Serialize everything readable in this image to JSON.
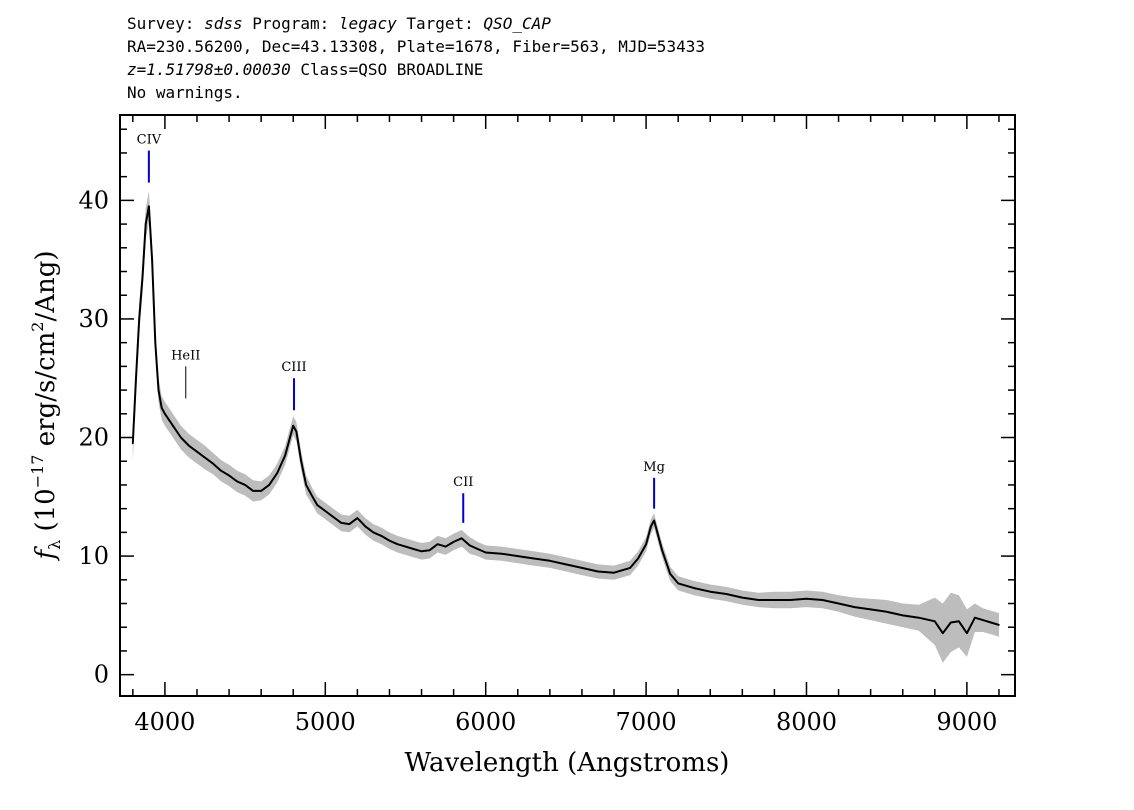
{
  "header": {
    "line1": {
      "survey_label": "Survey: ",
      "survey_value": "sdss",
      "program_label": " Program: ",
      "program_value": "legacy",
      "target_label": " Target: ",
      "target_value": "QSO_CAP"
    },
    "line2": "RA=230.56200, Dec=43.13308, Plate=1678, Fiber=563, MJD=53433",
    "line3": {
      "redshift": "z=1.51798±0.00030",
      "class_text": " Class=QSO BROADLINE"
    },
    "line4": "No warnings."
  },
  "chart_data": {
    "type": "line",
    "title": "",
    "xlabel": "Wavelength (Angstroms)",
    "ylabel_parts": {
      "symbol": "f",
      "symbol_sub": "λ",
      "open": " (10",
      "exponent": "−17",
      "units_a": " erg/s/cm",
      "units_exp": "2",
      "units_b": "/Ang)"
    },
    "xlim": [
      3720,
      9300
    ],
    "ylim": [
      -1.8,
      47.2
    ],
    "xticks": [
      4000,
      5000,
      6000,
      7000,
      8000,
      9000
    ],
    "yticks": [
      0,
      10,
      20,
      30,
      40
    ],
    "grid": false,
    "colors": {
      "flux": "#000000",
      "error": "#bdbdbd",
      "line_marker": "#0000cc",
      "weak_marker": "#000000"
    },
    "series": [
      {
        "name": "",
        "x": [
          3800,
          3820,
          3840,
          3860,
          3880,
          3900,
          3920,
          3940,
          3960,
          3980,
          4000,
          4050,
          4100,
          4150,
          4200,
          4250,
          4300,
          4350,
          4400,
          4450,
          4500,
          4550,
          4600,
          4650,
          4700,
          4750,
          4780,
          4800,
          4820,
          4850,
          4880,
          4920,
          4950,
          5000,
          5050,
          5100,
          5150,
          5200,
          5250,
          5300,
          5350,
          5400,
          5450,
          5500,
          5550,
          5600,
          5650,
          5700,
          5750,
          5800,
          5850,
          5900,
          5950,
          6000,
          6100,
          6200,
          6300,
          6400,
          6500,
          6600,
          6700,
          6800,
          6900,
          6950,
          7000,
          7030,
          7050,
          7070,
          7100,
          7150,
          7200,
          7300,
          7400,
          7500,
          7600,
          7700,
          7800,
          7900,
          8000,
          8100,
          8200,
          8300,
          8400,
          8500,
          8600,
          8700,
          8800,
          8850,
          8900,
          8950,
          9000,
          9050,
          9100,
          9150,
          9200
        ],
        "values": [
          19.5,
          25.0,
          30.0,
          33.5,
          38.0,
          39.5,
          35.0,
          28.0,
          24.0,
          22.5,
          22.0,
          21.0,
          20.0,
          19.3,
          18.8,
          18.3,
          17.8,
          17.2,
          16.8,
          16.3,
          16.0,
          15.5,
          15.5,
          16.0,
          17.0,
          18.5,
          20.0,
          21.0,
          20.5,
          18.0,
          16.0,
          15.0,
          14.3,
          13.8,
          13.3,
          12.8,
          12.7,
          13.2,
          12.5,
          12.0,
          11.7,
          11.3,
          11.0,
          10.8,
          10.6,
          10.4,
          10.5,
          11.0,
          10.8,
          11.2,
          11.5,
          10.9,
          10.6,
          10.3,
          10.2,
          10.0,
          9.8,
          9.6,
          9.3,
          9.0,
          8.7,
          8.6,
          9.0,
          9.8,
          11.0,
          12.5,
          13.0,
          12.0,
          10.5,
          8.5,
          7.7,
          7.3,
          7.0,
          6.8,
          6.5,
          6.3,
          6.3,
          6.3,
          6.4,
          6.3,
          6.0,
          5.7,
          5.5,
          5.3,
          5.0,
          4.8,
          4.5,
          3.5,
          4.4,
          4.5,
          3.5,
          4.8,
          4.6,
          4.4,
          4.2
        ]
      }
    ],
    "error_band": {
      "values": [
        1.5,
        1.4,
        1.3,
        1.3,
        1.3,
        1.3,
        1.2,
        1.1,
        1.0,
        1.0,
        1.0,
        1.0,
        1.0,
        1.0,
        1.0,
        1.0,
        0.9,
        0.9,
        0.9,
        0.9,
        0.9,
        0.9,
        0.8,
        0.8,
        0.8,
        0.8,
        0.8,
        0.8,
        0.8,
        0.8,
        0.8,
        0.7,
        0.7,
        0.7,
        0.7,
        0.7,
        0.7,
        0.7,
        0.7,
        0.7,
        0.7,
        0.7,
        0.7,
        0.7,
        0.7,
        0.7,
        0.7,
        0.7,
        0.7,
        0.7,
        0.7,
        0.7,
        0.6,
        0.6,
        0.6,
        0.6,
        0.6,
        0.6,
        0.6,
        0.6,
        0.6,
        0.6,
        0.6,
        0.6,
        0.6,
        0.6,
        0.6,
        0.6,
        0.6,
        0.6,
        0.6,
        0.6,
        0.6,
        0.6,
        0.6,
        0.6,
        0.7,
        0.7,
        0.7,
        0.7,
        0.7,
        0.8,
        0.9,
        1.0,
        1.0,
        1.1,
        2.0,
        2.5,
        2.5,
        2.2,
        2.0,
        1.2,
        1.0,
        1.0,
        1.0
      ]
    },
    "line_markers": [
      {
        "label": "CIV",
        "wavelength": 3900,
        "tick_bottom": 41.5,
        "tick_top": 44.2,
        "strong": true
      },
      {
        "label": "HeII",
        "wavelength": 4130,
        "tick_bottom": 23.3,
        "tick_top": 26.0,
        "strong": false
      },
      {
        "label": "CIII",
        "wavelength": 4805,
        "tick_bottom": 22.3,
        "tick_top": 25.0,
        "strong": true
      },
      {
        "label": "CII",
        "wavelength": 5860,
        "tick_bottom": 12.8,
        "tick_top": 15.3,
        "strong": true
      },
      {
        "label": "Mg",
        "wavelength": 7050,
        "tick_bottom": 14.0,
        "tick_top": 16.6,
        "strong": true
      }
    ]
  }
}
